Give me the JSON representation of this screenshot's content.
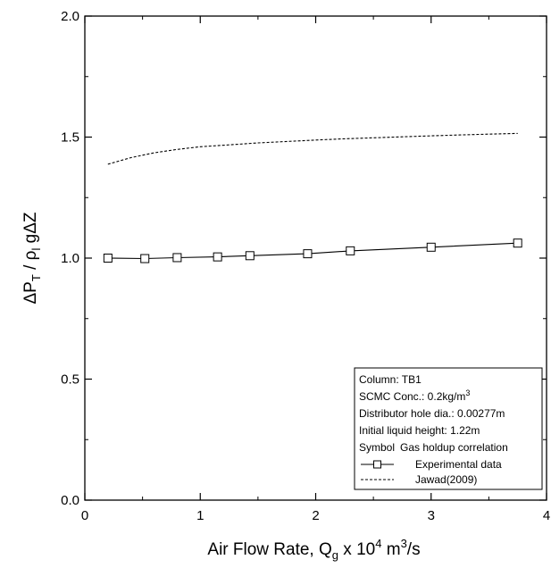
{
  "chart_data": {
    "type": "line",
    "xlabel": "Air Flow Rate, Q",
    "xlabel_sub": "g",
    "xlabel_mid": " x 10",
    "xlabel_sup": "4",
    "xlabel_unit": " m",
    "xlabel_unit_sup": "3",
    "xlabel_tail": "/s",
    "ylabel": "ΔP",
    "ylabel_sub1": "T",
    "ylabel_mid": " / ρ",
    "ylabel_sub2": "l",
    "ylabel_tail": " gΔZ",
    "xlim": [
      0,
      4
    ],
    "ylim": [
      0,
      2
    ],
    "x_ticks": [
      "0",
      "1",
      "2",
      "3",
      "4"
    ],
    "y_ticks": [
      "0.0",
      "0.5",
      "1.0",
      "1.5",
      "2.0"
    ],
    "grid": false,
    "legend_position": "bottom-right",
    "legend": {
      "line1": "Column: TB1",
      "line2": "SCMC Conc.: 0.2kg/m",
      "line2_sup": "3",
      "line3": "Distributor hole dia.: 0.00277m",
      "line4": "Initial liquid height: 1.22m",
      "header_symbol": "Symbol",
      "header_corr": "Gas holdup correlation"
    },
    "series": [
      {
        "name": "Experimental data",
        "style": "solid-square",
        "color": "#000000",
        "x": [
          0.2,
          0.52,
          0.8,
          1.15,
          1.43,
          1.93,
          2.3,
          3.0,
          3.75
        ],
        "y": [
          1.0,
          0.998,
          1.002,
          1.005,
          1.01,
          1.018,
          1.03,
          1.045,
          1.062
        ]
      },
      {
        "name": "Jawad(2009)",
        "style": "dashed",
        "color": "#000000",
        "x": [
          0.2,
          0.4,
          0.6,
          0.8,
          1.0,
          1.25,
          1.5,
          1.75,
          2.0,
          2.25,
          2.5,
          2.75,
          3.0,
          3.25,
          3.5,
          3.75
        ],
        "y": [
          1.388,
          1.415,
          1.435,
          1.449,
          1.46,
          1.468,
          1.476,
          1.482,
          1.488,
          1.493,
          1.497,
          1.501,
          1.505,
          1.509,
          1.512,
          1.515
        ]
      }
    ]
  }
}
